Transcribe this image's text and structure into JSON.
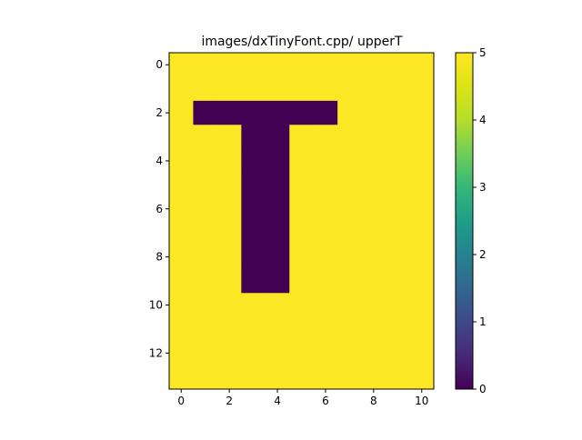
{
  "chart_data": {
    "type": "heatmap",
    "title": "images/dxTinyFont.cpp/ upperT",
    "xlabel": "",
    "ylabel": "",
    "colormap": "viridis",
    "xlim": [
      -0.5,
      10.5
    ],
    "ylim": [
      13.5,
      -0.5
    ],
    "x_ticks": [
      0,
      2,
      4,
      6,
      8,
      10
    ],
    "y_ticks": [
      0,
      2,
      4,
      6,
      8,
      10,
      12
    ],
    "colorbar": {
      "range": [
        0,
        5
      ],
      "ticks": [
        0,
        1,
        2,
        3,
        4,
        5
      ]
    },
    "rows": 14,
    "cols": 11,
    "values": [
      [
        5,
        5,
        5,
        5,
        5,
        5,
        5,
        5,
        5,
        5,
        5
      ],
      [
        5,
        5,
        5,
        5,
        5,
        5,
        5,
        5,
        5,
        5,
        5
      ],
      [
        5,
        0,
        0,
        0,
        0,
        0,
        0,
        5,
        5,
        5,
        5
      ],
      [
        5,
        5,
        5,
        0,
        0,
        5,
        5,
        5,
        5,
        5,
        5
      ],
      [
        5,
        5,
        5,
        0,
        0,
        5,
        5,
        5,
        5,
        5,
        5
      ],
      [
        5,
        5,
        5,
        0,
        0,
        5,
        5,
        5,
        5,
        5,
        5
      ],
      [
        5,
        5,
        5,
        0,
        0,
        5,
        5,
        5,
        5,
        5,
        5
      ],
      [
        5,
        5,
        5,
        0,
        0,
        5,
        5,
        5,
        5,
        5,
        5
      ],
      [
        5,
        5,
        5,
        0,
        0,
        5,
        5,
        5,
        5,
        5,
        5
      ],
      [
        5,
        5,
        5,
        0,
        0,
        5,
        5,
        5,
        5,
        5,
        5
      ],
      [
        5,
        5,
        5,
        5,
        5,
        5,
        5,
        5,
        5,
        5,
        5
      ],
      [
        5,
        5,
        5,
        5,
        5,
        5,
        5,
        5,
        5,
        5,
        5
      ],
      [
        5,
        5,
        5,
        5,
        5,
        5,
        5,
        5,
        5,
        5,
        5
      ],
      [
        5,
        5,
        5,
        5,
        5,
        5,
        5,
        5,
        5,
        5,
        5
      ]
    ]
  }
}
